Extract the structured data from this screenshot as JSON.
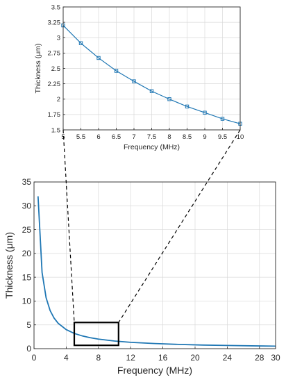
{
  "colors": {
    "line": "#1f77b4",
    "marker": "#1f77b4",
    "grid": "#d9d9d9",
    "axis": "#262626",
    "zoom_box": "#000000"
  },
  "chart_data": [
    {
      "type": "line",
      "panel": "main",
      "title": "",
      "xlabel": "Frequency (MHz)",
      "ylabel": "Thickness (μm)",
      "xlim": [
        0,
        30
      ],
      "ylim": [
        0,
        35
      ],
      "xticks": [
        0,
        4,
        8,
        12,
        16,
        20,
        24,
        28,
        30
      ],
      "yticks": [
        0,
        5,
        10,
        15,
        20,
        25,
        30,
        35
      ],
      "grid": true,
      "x": [
        0.5,
        1.0,
        1.5,
        2.0,
        2.5,
        3.0,
        4.0,
        5.0,
        6.0,
        7.0,
        8.0,
        10.0,
        12.0,
        15.0,
        18.0,
        21.0,
        24.0,
        27.0,
        30.0
      ],
      "y": [
        32.0,
        16.0,
        10.7,
        8.0,
        6.4,
        5.33,
        4.0,
        3.2,
        2.67,
        2.29,
        2.0,
        1.6,
        1.33,
        1.07,
        0.89,
        0.76,
        0.67,
        0.59,
        0.53
      ],
      "zoom_region": {
        "xlim": [
          5,
          10.5
        ],
        "ylim": [
          0.7,
          5.5
        ]
      }
    },
    {
      "type": "line",
      "panel": "inset",
      "title": "",
      "xlabel": "Frequency (MHz)",
      "ylabel": "Thickness (μm)",
      "xlim": [
        5,
        10
      ],
      "ylim": [
        1.5,
        3.5
      ],
      "xticks": [
        "5",
        "5.5",
        "6",
        "6.5",
        "7",
        "7.5",
        "8",
        "8.5",
        "9",
        "9.5",
        "10"
      ],
      "yticks": [
        "1.5",
        "1.75",
        "2",
        "2.25",
        "2.5",
        "2.75",
        "3",
        "3.25",
        "3.5"
      ],
      "grid": true,
      "markers": "square",
      "x": [
        5,
        5.5,
        6,
        6.5,
        7,
        7.5,
        8,
        8.5,
        9,
        9.5,
        10
      ],
      "y": [
        3.2,
        2.91,
        2.67,
        2.46,
        2.29,
        2.13,
        2.0,
        1.88,
        1.78,
        1.68,
        1.6
      ]
    }
  ]
}
